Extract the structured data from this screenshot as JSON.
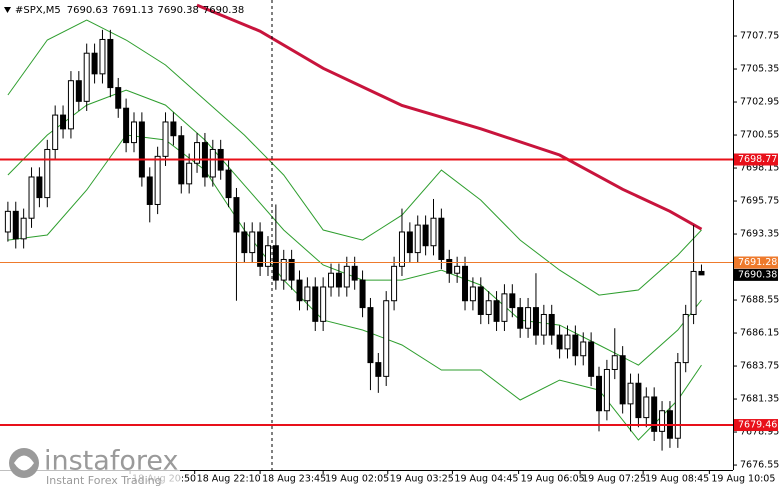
{
  "chart_data": {
    "type": "candlestick",
    "symbol": "#SPX,M5",
    "ohlc": [
      7690.63,
      7691.13,
      7690.38,
      7690.38
    ],
    "x": [
      0,
      1,
      2,
      3,
      4,
      5,
      6,
      7,
      8,
      9,
      10,
      11,
      12,
      13,
      14,
      15,
      16,
      17,
      18,
      19,
      20,
      21,
      22,
      23,
      24,
      25,
      26,
      27,
      28,
      29,
      30,
      31,
      32,
      33,
      34,
      35,
      36,
      37,
      38,
      39,
      40,
      41,
      42,
      43,
      44,
      45,
      46,
      47,
      48,
      49,
      50,
      51,
      52,
      53,
      54,
      55,
      56,
      57,
      58,
      59,
      60,
      61,
      62,
      63,
      64,
      65,
      66,
      67,
      68,
      69,
      70,
      71,
      72,
      73,
      74,
      75,
      76,
      77,
      78,
      79,
      80,
      81,
      82,
      83,
      84,
      85,
      86,
      87,
      88
    ],
    "open": [
      7693.5,
      7695.0,
      7693.0,
      7694.5,
      7697.5,
      7696.0,
      7699.5,
      7702.0,
      7701.0,
      7704.5,
      7703.0,
      7706.5,
      7705.0,
      7707.5,
      7704.0,
      7702.5,
      7700.0,
      7701.5,
      7697.5,
      7695.5,
      7699.0,
      7701.5,
      7700.5,
      7697.0,
      7698.5,
      7700.0,
      7697.5,
      7699.5,
      7698.0,
      7696.0,
      7693.5,
      7692.0,
      7693.5,
      7691.0,
      7692.5,
      7690.0,
      7691.5,
      7690.0,
      7688.5,
      7689.5,
      7687.0,
      7689.5,
      7690.5,
      7689.5,
      7691.0,
      7690.0,
      7688.0,
      7684.0,
      7683.0,
      7688.5,
      7691.0,
      7693.5,
      7692.0,
      7694.0,
      7692.5,
      7694.5,
      7691.5,
      7690.5,
      7691.0,
      7688.5,
      7689.5,
      7687.5,
      7688.5,
      7687.0,
      7689.0,
      7688.0,
      7686.5,
      7688.0,
      7686.0,
      7687.5,
      7686.0,
      7685.0,
      7686.0,
      7684.5,
      7685.5,
      7683.0,
      7680.5,
      7683.5,
      7684.5,
      7681.0,
      7682.5,
      7680.0,
      7681.5,
      7679.0,
      7680.5,
      7678.5,
      7684.0,
      7687.5,
      7690.63
    ],
    "high": [
      7695.7,
      7695.7,
      7695.2,
      7698.2,
      7698.2,
      7700.2,
      7702.7,
      7702.7,
      7705.2,
      7705.2,
      7707.2,
      7707.2,
      7708.2,
      7708.2,
      7704.7,
      7703.2,
      7702.2,
      7702.2,
      7698.2,
      7699.7,
      7702.2,
      7702.2,
      7701.2,
      7699.2,
      7700.7,
      7700.7,
      7700.2,
      7700.2,
      7698.7,
      7696.7,
      7694.2,
      7694.2,
      7694.2,
      7693.2,
      7695.5,
      7692.2,
      7692.2,
      7690.7,
      7690.2,
      7690.2,
      7690.2,
      7691.2,
      7691.2,
      7691.7,
      7691.7,
      7690.7,
      7688.7,
      7684.7,
      7689.2,
      7691.7,
      7695.2,
      7694.2,
      7694.7,
      7694.7,
      7695.9,
      7695.2,
      7692.2,
      7691.7,
      7691.7,
      7690.2,
      7690.2,
      7689.2,
      7689.2,
      7689.7,
      7689.7,
      7688.7,
      7688.7,
      7690.5,
      7688.2,
      7688.2,
      7686.7,
      7686.7,
      7686.7,
      7686.2,
      7686.2,
      7683.7,
      7684.2,
      7686.5,
      7685.2,
      7683.2,
      7683.2,
      7682.2,
      7682.2,
      7681.2,
      7681.2,
      7684.7,
      7688.2,
      7694.0,
      7691.13
    ],
    "low": [
      7692.8,
      7692.3,
      7692.3,
      7693.8,
      7695.3,
      7695.3,
      7698.8,
      7700.3,
      7700.3,
      7702.3,
      7702.3,
      7704.3,
      7704.3,
      7703.3,
      7701.8,
      7699.3,
      7699.3,
      7696.8,
      7694.2,
      7694.8,
      7698.3,
      7699.8,
      7696.3,
      7696.3,
      7697.8,
      7696.8,
      7696.8,
      7697.3,
      7695.3,
      7688.5,
      7691.3,
      7691.3,
      7690.3,
      7690.3,
      7689.3,
      7689.3,
      7689.3,
      7687.8,
      7687.8,
      7686.3,
      7686.3,
      7688.8,
      7688.8,
      7688.8,
      7689.3,
      7687.3,
      7682.0,
      7681.8,
      7682.3,
      7687.8,
      7690.3,
      7691.3,
      7691.3,
      7691.8,
      7691.8,
      7690.8,
      7689.8,
      7689.8,
      7687.8,
      7687.8,
      7686.8,
      7686.8,
      7686.3,
      7686.3,
      7687.3,
      7685.8,
      7685.8,
      7685.3,
      7685.3,
      7685.3,
      7684.3,
      7684.3,
      7683.8,
      7683.8,
      7682.3,
      7679.0,
      7679.8,
      7682.8,
      7680.3,
      7679.0,
      7679.3,
      7679.3,
      7678.3,
      7677.6,
      7677.8,
      7677.8,
      7683.3,
      7686.8,
      7690.38
    ],
    "close": [
      7695.0,
      7693.0,
      7694.5,
      7697.5,
      7696.0,
      7699.5,
      7702.0,
      7701.0,
      7704.5,
      7703.0,
      7706.5,
      7705.0,
      7707.5,
      7704.0,
      7702.5,
      7700.0,
      7701.5,
      7697.5,
      7695.5,
      7699.0,
      7701.5,
      7700.5,
      7697.0,
      7698.5,
      7700.0,
      7697.5,
      7699.5,
      7698.0,
      7696.0,
      7693.5,
      7692.0,
      7693.5,
      7691.0,
      7692.5,
      7690.0,
      7691.5,
      7690.0,
      7688.5,
      7689.5,
      7687.0,
      7689.5,
      7690.5,
      7689.5,
      7691.0,
      7690.0,
      7688.0,
      7684.0,
      7683.0,
      7688.5,
      7691.0,
      7693.5,
      7692.0,
      7694.0,
      7692.5,
      7694.5,
      7691.5,
      7690.5,
      7691.0,
      7688.5,
      7689.5,
      7687.5,
      7688.5,
      7687.0,
      7689.0,
      7688.0,
      7686.5,
      7688.0,
      7686.0,
      7687.5,
      7686.0,
      7685.0,
      7686.0,
      7684.5,
      7685.5,
      7683.0,
      7680.5,
      7683.5,
      7684.5,
      7681.0,
      7682.5,
      7680.0,
      7681.5,
      7679.0,
      7680.5,
      7678.5,
      7684.0,
      7687.5,
      7690.63,
      7690.38
    ],
    "up_color": "#ffffff",
    "down_color": "#000000",
    "xlim": [
      -1,
      92
    ],
    "ylim": [
      7676.19,
      7710.37
    ],
    "yticks": [
      7707.75,
      7705.35,
      7702.95,
      7700.55,
      7698.15,
      7695.75,
      7693.35,
      7688.55,
      7686.15,
      7683.75,
      7681.35,
      7678.95,
      7676.55
    ],
    "xticks": [
      {
        "value": 15.5,
        "label": "18 Aug 20:50"
      },
      {
        "value": 23.7,
        "label": "18 Aug 22:10"
      },
      {
        "value": 32.0,
        "label": "18 Aug 23:45"
      },
      {
        "value": 40.0,
        "label": "19 Aug 02:05"
      },
      {
        "value": 48.2,
        "label": "19 Aug 03:25"
      },
      {
        "value": 56.4,
        "label": "19 Aug 04:45"
      },
      {
        "value": 64.8,
        "label": "19 Aug 06:05"
      },
      {
        "value": 72.6,
        "label": "19 Aug 07:25"
      },
      {
        "value": 80.6,
        "label": "19 Aug 08:45"
      },
      {
        "value": 89.0,
        "label": "19 Aug 10:05"
      }
    ],
    "lines": [
      {
        "color": "#c8143c",
        "width": 3,
        "x": [
          24,
          32,
          40,
          50,
          60,
          70,
          78,
          84,
          88
        ],
        "values": [
          7710.0,
          7708.1,
          7705.4,
          7702.7,
          7701.0,
          7699.1,
          7696.6,
          7695.0,
          7693.7
        ]
      },
      {
        "color": "#2e9e2e",
        "width": 1,
        "x": [
          0,
          5,
          10,
          15,
          20,
          25,
          30,
          35,
          40,
          45,
          50,
          55,
          60,
          65,
          70,
          75,
          80,
          85,
          88
        ],
        "values": [
          7703.46,
          7707.46,
          7708.91,
          7707.46,
          7705.64,
          7703.1,
          7700.55,
          7697.64,
          7693.64,
          7692.91,
          7694.73,
          7698.0,
          7695.82,
          7692.91,
          7690.73,
          7688.91,
          7689.28,
          7691.82,
          7693.64
        ]
      },
      {
        "color": "#2e9e2e",
        "width": 1,
        "x": [
          0,
          5,
          10,
          15,
          20,
          25,
          30,
          35,
          40,
          45,
          50,
          55,
          60,
          65,
          70,
          75,
          80,
          85,
          88
        ],
        "values": [
          7697.64,
          7700.55,
          7702.73,
          7703.82,
          7702.73,
          7700.19,
          7696.91,
          7693.64,
          7691.1,
          7690.0,
          7690.0,
          7690.73,
          7689.64,
          7687.09,
          7686.73,
          7685.28,
          7683.82,
          7686.37,
          7688.55
        ]
      },
      {
        "color": "#2e9e2e",
        "width": 1,
        "x": [
          0,
          5,
          10,
          15,
          20,
          25,
          30,
          35,
          40,
          45,
          50,
          55,
          60,
          65,
          70,
          75,
          80,
          85,
          88
        ],
        "values": [
          7692.91,
          7693.28,
          7696.55,
          7700.55,
          7700.19,
          7698.0,
          7693.64,
          7690.0,
          7687.09,
          7686.37,
          7685.28,
          7683.46,
          7683.46,
          7681.28,
          7682.73,
          7682.0,
          7678.37,
          7681.28,
          7683.82
        ]
      }
    ],
    "levels": [
      {
        "value": 7698.77,
        "color": "#e8101a",
        "width": 2
      },
      {
        "value": 7691.28,
        "color": "#ee7a2c",
        "width": 1
      },
      {
        "value": 7690.38,
        "color": "#000000",
        "width": 0
      },
      {
        "value": 7679.46,
        "color": "#e8101a",
        "width": 2
      }
    ],
    "watermark": {
      "brand": "instaforex",
      "tagline": "Instant Forex Trading"
    }
  }
}
